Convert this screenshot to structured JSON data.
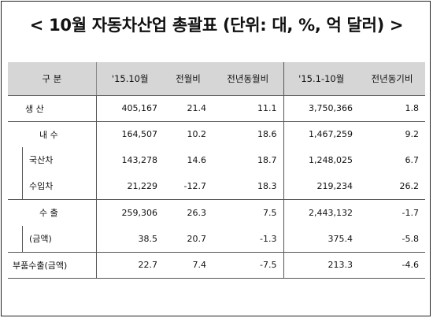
{
  "title": "< 10월 자동차산업 총괄표 (단위: 대, %, 억 달러) >",
  "table": {
    "headers": [
      "구   분",
      "'15.10월",
      "전월비",
      "전년동월비",
      "'15.1-10월",
      "전년동기비"
    ],
    "rows": [
      {
        "label": "생   산",
        "values": [
          "405,167",
          "21.4",
          "11.1",
          "3,750,366",
          "1.8"
        ]
      },
      {
        "label": "내   수",
        "values": [
          "164,507",
          "10.2",
          "18.6",
          "1,467,259",
          "9.2"
        ]
      },
      {
        "label": "국산차",
        "values": [
          "143,278",
          "14.6",
          "18.7",
          "1,248,025",
          "6.7"
        ]
      },
      {
        "label": "수입차",
        "values": [
          "21,229",
          "-12.7",
          "18.3",
          "219,234",
          "26.2"
        ]
      },
      {
        "label": "수   출",
        "values": [
          "259,306",
          "26.3",
          "7.5",
          "2,443,132",
          "-1.7"
        ]
      },
      {
        "label": "(금액)",
        "values": [
          "38.5",
          "20.7",
          "-1.3",
          "375.4",
          "-5.8"
        ]
      },
      {
        "label": "부품수출(금액)",
        "values": [
          "22.7",
          "7.4",
          "-7.5",
          "213.3",
          "-4.6"
        ]
      }
    ]
  }
}
